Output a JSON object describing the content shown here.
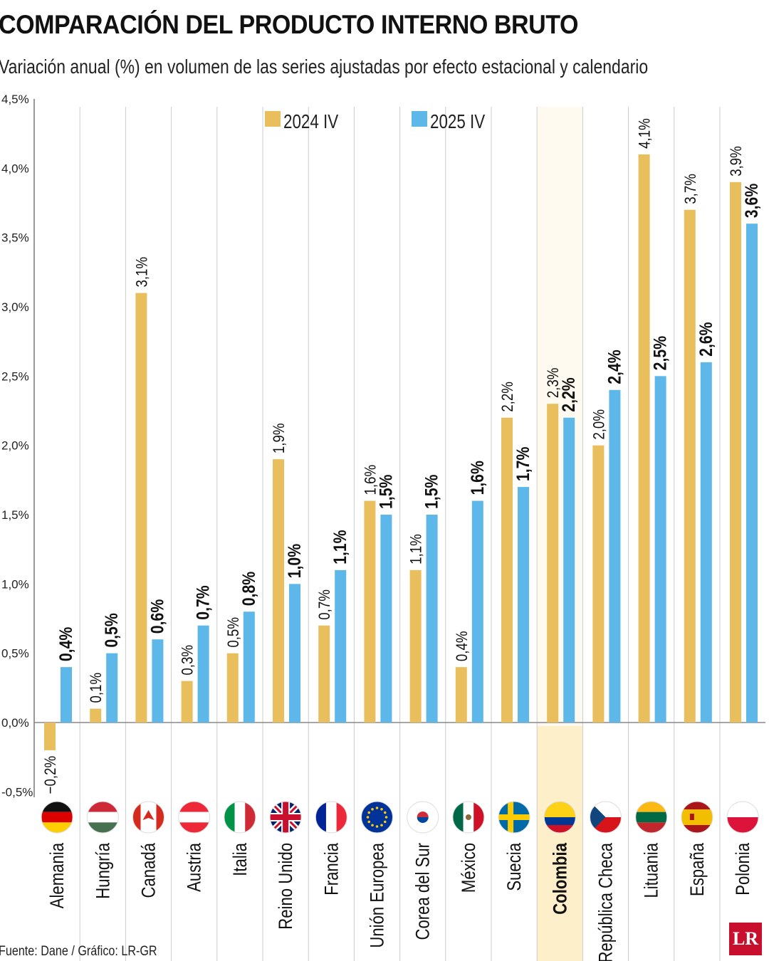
{
  "chart_data": {
    "type": "bar",
    "title": "COMPARACIÓN DEL PRODUCTO INTERNO BRUTO",
    "subtitle": "Variación anual (%) en volumen de las series ajustadas por efecto estacional y calendario",
    "categories": [
      "Alemania",
      "Hungría",
      "Canadá",
      "Austria",
      "Italia",
      "Reino Unido",
      "Francia",
      "Unión Europea",
      "Corea del Sur",
      "México",
      "Suecia",
      "Colombia",
      "República Checa",
      "Lituania",
      "España",
      "Polonia"
    ],
    "series": [
      {
        "name": "2024 IV",
        "color": "#E9BF5E",
        "values": [
          -0.2,
          0.1,
          3.1,
          0.3,
          0.5,
          1.9,
          0.7,
          1.6,
          1.1,
          0.4,
          2.2,
          2.3,
          2.0,
          4.1,
          3.7,
          3.9
        ],
        "labels": [
          "−0,2%",
          "0,1%",
          "3,1%",
          "0,3%",
          "0,5%",
          "1,9%",
          "0,7%",
          "1,6%",
          "1,1%",
          "0,4%",
          "2,2%",
          "2,3%",
          "2,0%",
          "4,1%",
          "3,7%",
          "3,9%"
        ]
      },
      {
        "name": "2025 IV",
        "color": "#5DB7E8",
        "values": [
          0.4,
          0.5,
          0.6,
          0.7,
          0.8,
          1.0,
          1.1,
          1.5,
          1.5,
          1.6,
          1.7,
          2.2,
          2.4,
          2.5,
          2.6,
          3.6
        ],
        "labels": [
          "0,4%",
          "0,5%",
          "0,6%",
          "0,7%",
          "0,8%",
          "1,0%",
          "1,1%",
          "1,5%",
          "1,5%",
          "1,6%",
          "1,7%",
          "2,2%",
          "2,4%",
          "2,5%",
          "2,6%",
          "3,6%"
        ]
      }
    ],
    "ylim": [
      -0.5,
      4.5
    ],
    "yticks": [
      -0.5,
      0,
      0.5,
      1,
      1.5,
      2,
      2.5,
      3,
      3.5,
      4,
      4.5
    ],
    "ytick_labels": [
      "-0,5%",
      "0,0%",
      "0,5%",
      "1,0%",
      "1,5%",
      "2,0%",
      "2,5%",
      "3,0%",
      "3,5%",
      "4,0%",
      "4,5%"
    ],
    "legend_placement": "top",
    "highlight_category": "Colombia",
    "highlight_color": "#FCEFC9",
    "flags": [
      "germany-flag",
      "hungary-flag",
      "canada-flag",
      "austria-flag",
      "italy-flag",
      "uk-flag",
      "france-flag",
      "eu-flag",
      "south-korea-flag",
      "mexico-flag",
      "sweden-flag",
      "colombia-flag",
      "czech-flag",
      "lithuania-flag",
      "spain-flag",
      "poland-flag"
    ]
  },
  "source": "Fuente: Dane / Gráfico: LR-GR",
  "logo": "LR"
}
